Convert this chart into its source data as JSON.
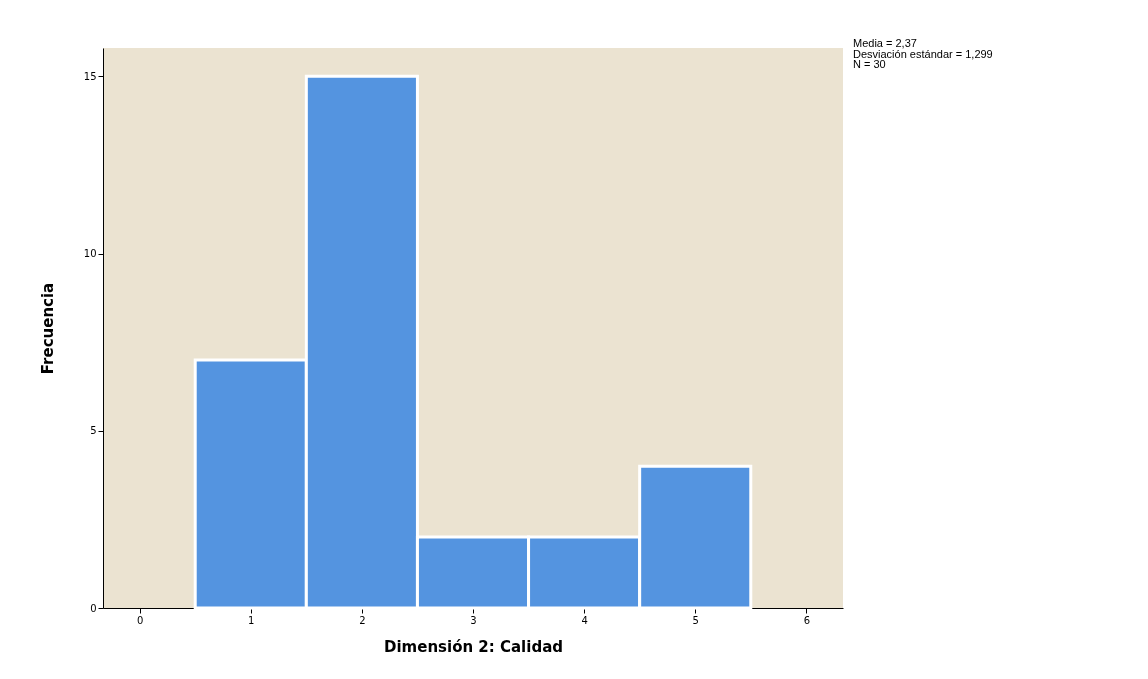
{
  "chart_data": {
    "type": "histogram",
    "xlabel": "Dimensión 2: Calidad",
    "ylabel": "Frecuencia",
    "bins": [
      0.5,
      1.5,
      2.5,
      3.5,
      4.5,
      5.5
    ],
    "values": [
      7,
      15,
      2,
      2,
      4
    ],
    "color": "#5494e0",
    "xlim": [
      -0.33,
      6.33
    ],
    "xticks": [
      0,
      1,
      2,
      3,
      4,
      5,
      6
    ],
    "ylim": [
      0,
      15.8
    ],
    "yticks": [
      0,
      5,
      10,
      15
    ],
    "grid": false,
    "annotations": [
      "Media = 2,37",
      "Desviación estándar = 1,299",
      "N = 30"
    ]
  }
}
